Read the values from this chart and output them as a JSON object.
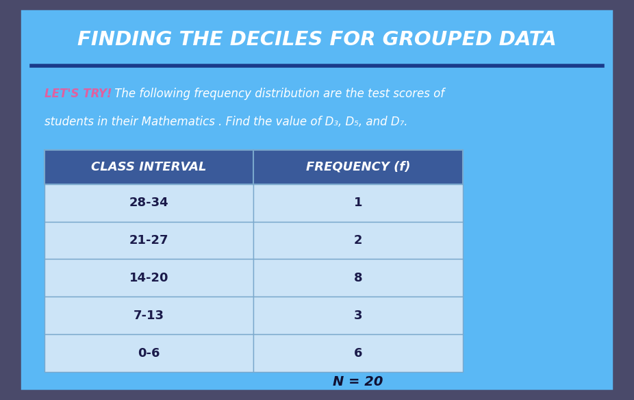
{
  "title": "FINDING THE DECILES FOR GROUPED DATA",
  "subtitle_bold": "LET'S TRY!",
  "line1_normal": " The following frequency distribution are the test scores of",
  "line2_normal": "students in their Mathematics . Find the value of D₃, D₅, and D₇.",
  "col_headers": [
    "CLASS INTERVAL",
    "FREQUENCY (f)"
  ],
  "rows": [
    [
      "28-34",
      "1"
    ],
    [
      "21-27",
      "2"
    ],
    [
      "14-20",
      "8"
    ],
    [
      "7-13",
      "3"
    ],
    [
      "0-6",
      "6"
    ]
  ],
  "n_label": "N = 20",
  "outer_bg_color": "#4a4a6a",
  "bg_color": "#5ab8f5",
  "title_color": "#ffffff",
  "title_underline_color": "#1a3a8a",
  "subtitle_bold_color": "#e060a0",
  "subtitle_normal_color": "#ffffff",
  "header_bg_color": "#3a5a9a",
  "header_text_color": "#ffffff",
  "row_bg_color": "#cce4f7",
  "cell_border_color": "#7aa8cc",
  "n_label_color": "#111133"
}
